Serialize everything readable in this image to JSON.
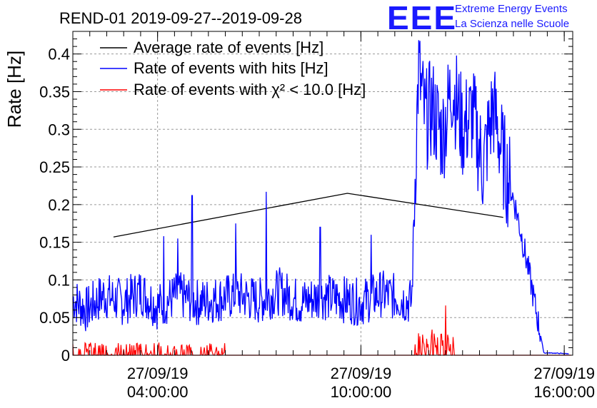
{
  "logo": {
    "letters": "EEE",
    "line1": "Extreme Energy Events",
    "line2": "La Scienza nelle Scuole",
    "color": "#1a1aff"
  },
  "chart_data": {
    "type": "line",
    "title": "REND-01 2019-09-27--2019-09-28",
    "xlabel": "",
    "ylabel": "Rate [Hz]",
    "x_unit": "hours since 2019-09-27 00:00",
    "xlim": [
      1.5,
      16.25
    ],
    "ylim": [
      0,
      0.43
    ],
    "grid": true,
    "legend_position": "top-left",
    "x_ticks": [
      {
        "x": 4,
        "date": "27/09/19",
        "time": "04:00:00"
      },
      {
        "x": 10,
        "date": "27/09/19",
        "time": "10:00:00"
      },
      {
        "x": 16,
        "date": "27/09/19",
        "time": "16:00:00"
      }
    ],
    "y_ticks": [
      {
        "v": 0,
        "label": "0"
      },
      {
        "v": 0.05,
        "label": "0.05"
      },
      {
        "v": 0.1,
        "label": "0.1"
      },
      {
        "v": 0.15,
        "label": "0.15"
      },
      {
        "v": 0.2,
        "label": "0.2"
      },
      {
        "v": 0.25,
        "label": "0.25"
      },
      {
        "v": 0.3,
        "label": "0.3"
      },
      {
        "v": 0.35,
        "label": "0.35"
      },
      {
        "v": 0.4,
        "label": "0.4"
      }
    ],
    "series": [
      {
        "name": "Average rate of events [Hz]",
        "color": "#000000",
        "x": [
          2.7,
          9.6,
          14.2
        ],
        "y": [
          0.157,
          0.215,
          0.183
        ]
      },
      {
        "name": "Rate of events with hits [Hz]",
        "color": "#0000ff",
        "x": [
          1.5,
          1.9,
          2.4,
          3.0,
          3.5,
          4.0,
          4.6,
          5.2,
          5.8,
          6.4,
          7.0,
          7.6,
          8.2,
          8.8,
          9.4,
          10.0,
          10.6,
          11.2,
          11.5,
          11.6,
          11.7,
          11.9,
          12.1,
          12.4,
          12.7,
          13.0,
          13.3,
          13.6,
          13.9,
          14.2,
          14.6,
          15.0,
          15.4,
          15.6,
          16.1
        ],
        "y": [
          0.075,
          0.06,
          0.08,
          0.07,
          0.085,
          0.065,
          0.08,
          0.07,
          0.075,
          0.08,
          0.072,
          0.085,
          0.07,
          0.078,
          0.075,
          0.07,
          0.082,
          0.075,
          0.07,
          0.24,
          0.38,
          0.31,
          0.33,
          0.29,
          0.36,
          0.3,
          0.32,
          0.25,
          0.33,
          0.26,
          0.19,
          0.1,
          0.003,
          0.003,
          0.002
        ],
        "spikes": [
          {
            "x": 4.18,
            "y": 0.158
          },
          {
            "x": 5.02,
            "y": 0.212
          },
          {
            "x": 7.2,
            "y": 0.217
          },
          {
            "x": 4.6,
            "y": 0.155
          },
          {
            "x": 6.3,
            "y": 0.175
          },
          {
            "x": 8.8,
            "y": 0.17
          },
          {
            "x": 10.3,
            "y": 0.16
          }
        ]
      },
      {
        "name": "Rate of events with χ² < 10.0 [Hz]",
        "color": "#ff0000",
        "x": [
          1.5,
          1.7,
          1.9,
          2.1,
          2.3,
          2.5,
          2.7,
          2.9,
          3.1,
          3.3,
          3.5,
          3.7,
          3.9,
          4.1,
          4.3,
          4.5,
          4.7,
          4.9,
          5.1,
          5.3,
          5.5,
          5.7,
          5.8,
          6.0,
          11.5,
          11.7,
          11.9,
          12.1,
          12.3,
          12.5,
          12.7,
          16.2
        ],
        "y": [
          0.01,
          0.015,
          0.008,
          0.012,
          0.005,
          0.017,
          0.013,
          0.006,
          0.015,
          0.01,
          0.014,
          0.008,
          0.012,
          0.016,
          0.009,
          0.013,
          0.011,
          0.006,
          0.015,
          0.01,
          0.012,
          0.008,
          0.01,
          0.0,
          0.0,
          0.016,
          0.008,
          0.034,
          0.02,
          0.066,
          0.01,
          0.0
        ]
      }
    ]
  }
}
